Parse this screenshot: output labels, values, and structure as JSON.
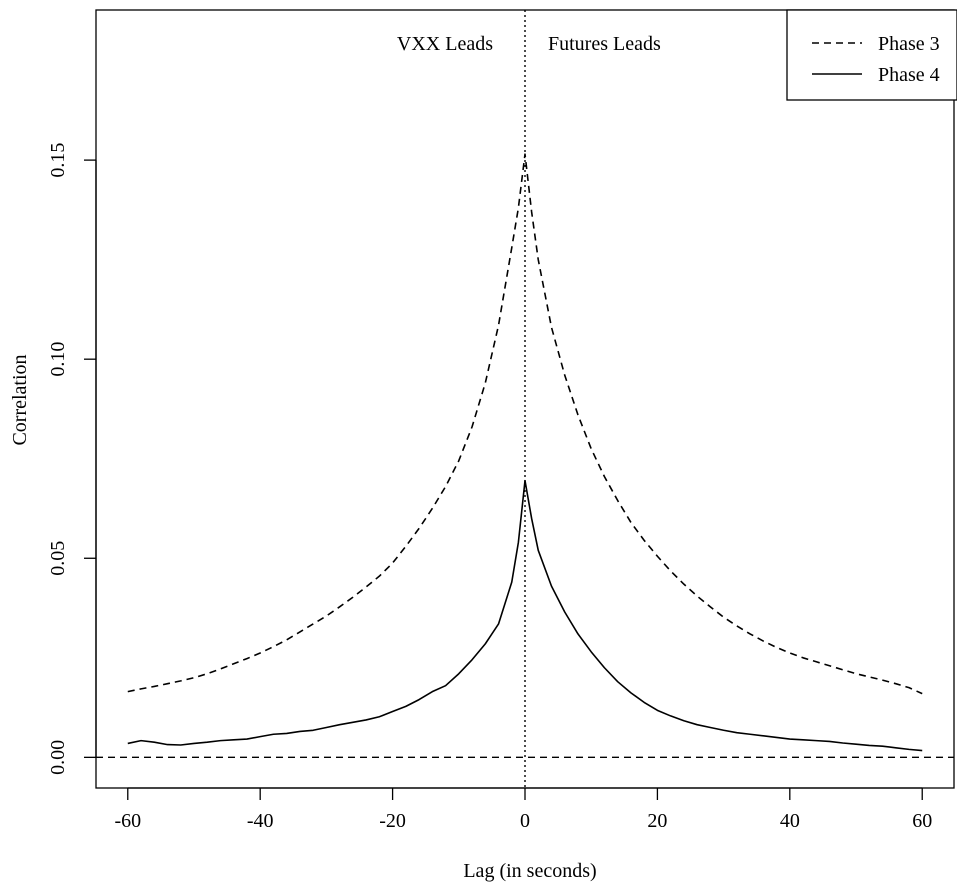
{
  "chart_data": {
    "type": "line",
    "title": "",
    "xlabel": "Lag (in seconds)",
    "ylabel": "Correlation",
    "xlim": [
      -64.8,
      64.8
    ],
    "ylim": [
      -0.0077,
      0.1877
    ],
    "xticks": [
      -60,
      -40,
      -20,
      0,
      20,
      40,
      60
    ],
    "xtick_labels": [
      "-60",
      "-40",
      "-20",
      "0",
      "20",
      "40",
      "60"
    ],
    "yticks": [
      0.0,
      0.05,
      0.1,
      0.15
    ],
    "ytick_labels": [
      "0.00",
      "0.05",
      "0.10",
      "0.15"
    ],
    "grid": false,
    "legend_position": "top-right",
    "annotations": {
      "left": "VXX Leads",
      "right": "Futures Leads"
    },
    "reference_lines": [
      {
        "orientation": "horizontal",
        "value": 0,
        "style": "dashed"
      },
      {
        "orientation": "vertical",
        "value": 0,
        "style": "dotted"
      }
    ],
    "x": [
      -60,
      -58,
      -56,
      -54,
      -52,
      -50,
      -48,
      -46,
      -44,
      -42,
      -40,
      -38,
      -36,
      -34,
      -32,
      -30,
      -28,
      -26,
      -24,
      -22,
      -20,
      -18,
      -16,
      -14,
      -12,
      -10,
      -8,
      -6,
      -4,
      -2,
      -1,
      0,
      1,
      2,
      4,
      6,
      8,
      10,
      12,
      14,
      16,
      18,
      20,
      22,
      24,
      26,
      28,
      30,
      32,
      34,
      36,
      38,
      40,
      42,
      44,
      46,
      48,
      50,
      52,
      54,
      56,
      58,
      60
    ],
    "series": [
      {
        "name": "Phase 3",
        "style": "dashed",
        "values": [
          0.0165,
          0.0172,
          0.0178,
          0.0185,
          0.0192,
          0.02,
          0.021,
          0.0222,
          0.0235,
          0.0248,
          0.0262,
          0.0278,
          0.0295,
          0.0315,
          0.0335,
          0.0355,
          0.0378,
          0.0402,
          0.0428,
          0.0455,
          0.0488,
          0.053,
          0.0575,
          0.0625,
          0.068,
          0.0745,
          0.083,
          0.094,
          0.1085,
          0.128,
          0.138,
          0.1515,
          0.137,
          0.125,
          0.108,
          0.096,
          0.086,
          0.0775,
          0.0705,
          0.0645,
          0.059,
          0.0545,
          0.0505,
          0.0468,
          0.0435,
          0.0405,
          0.0378,
          0.0352,
          0.033,
          0.031,
          0.0292,
          0.0276,
          0.0262,
          0.025,
          0.024,
          0.023,
          0.022,
          0.021,
          0.0202,
          0.0194,
          0.0185,
          0.0175,
          0.016
        ]
      },
      {
        "name": "Phase 4",
        "style": "solid",
        "values": [
          0.0035,
          0.0042,
          0.0038,
          0.0032,
          0.0031,
          0.0035,
          0.0038,
          0.0042,
          0.0044,
          0.0046,
          0.0052,
          0.0058,
          0.006,
          0.0065,
          0.0068,
          0.0075,
          0.0082,
          0.0088,
          0.0094,
          0.0102,
          0.0115,
          0.0128,
          0.0145,
          0.0165,
          0.018,
          0.021,
          0.0245,
          0.0285,
          0.0335,
          0.044,
          0.054,
          0.0695,
          0.06,
          0.052,
          0.043,
          0.0365,
          0.031,
          0.0265,
          0.0225,
          0.019,
          0.0162,
          0.0138,
          0.0118,
          0.0104,
          0.0092,
          0.0082,
          0.0075,
          0.0068,
          0.0062,
          0.0058,
          0.0054,
          0.005,
          0.0046,
          0.0044,
          0.0042,
          0.004,
          0.0036,
          0.0033,
          0.003,
          0.0028,
          0.0024,
          0.002,
          0.0017
        ]
      }
    ]
  }
}
